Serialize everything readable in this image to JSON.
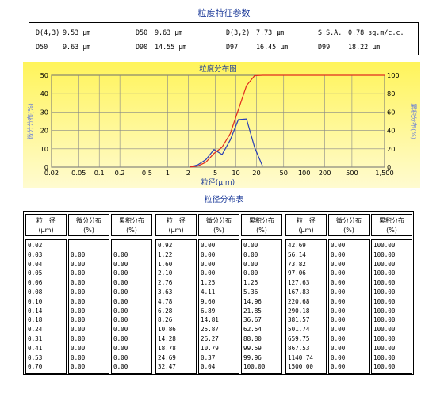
{
  "title": "粒度特征参数",
  "params": [
    [
      {
        "label": "D(4,3)",
        "value": "9.53 μm"
      },
      {
        "label": "D50",
        "value": "9.63 μm"
      },
      {
        "label": "D(3,2)",
        "value": "7.73 μm"
      },
      {
        "label": "S.S.A.",
        "value": "0.78 sq.m/c.c."
      }
    ],
    [
      {
        "label": "D50",
        "value": "9.63 μm"
      },
      {
        "label": "D90",
        "value": "14.55 μm"
      },
      {
        "label": "D97",
        "value": "16.45 μm"
      },
      {
        "label": "D99",
        "value": "18.22 μm"
      }
    ]
  ],
  "chart_data": {
    "type": "line",
    "title": "粒度分布图",
    "xlabel": "粒径(μ m)",
    "ylabel_left": "微分分布(%)",
    "ylabel_right": "累积分布(%)",
    "x_scale": "log",
    "xlim": [
      0.02,
      1500
    ],
    "ylim_left": [
      0,
      50
    ],
    "ylim_right": [
      0,
      100
    ],
    "x_ticks": [
      "0.02",
      "0.05",
      "0.1",
      "0.2",
      "0.5",
      "1",
      "2",
      "5",
      "10",
      "20",
      "50",
      "100",
      "200",
      "500",
      "1,500"
    ],
    "x_tick_values": [
      0.02,
      0.05,
      0.1,
      0.2,
      0.5,
      1,
      2,
      5,
      10,
      20,
      50,
      100,
      200,
      500,
      1500
    ],
    "y_ticks_left": [
      "0",
      "10",
      "20",
      "30",
      "40",
      "50"
    ],
    "y_ticks_right": [
      "0",
      "20",
      "40",
      "60",
      "80",
      "100"
    ],
    "grid": true,
    "series": [
      {
        "axis": "left",
        "color": "#2a3fb5",
        "x": [
          2.1,
          2.76,
          3.63,
          4.78,
          6.28,
          8.26,
          10.86,
          14.28,
          18.78,
          24.69
        ],
        "y": [
          0,
          1.25,
          4.11,
          9.6,
          6.89,
          14.81,
          25.87,
          26.27,
          10.79,
          0.37
        ]
      },
      {
        "axis": "right",
        "color": "#e02a1e",
        "x": [
          2.1,
          2.76,
          3.63,
          4.78,
          6.28,
          8.26,
          10.86,
          14.28,
          18.78,
          24.69,
          32.47
        ],
        "y": [
          0,
          1.25,
          5.36,
          14.96,
          21.85,
          36.67,
          62.54,
          88.8,
          99.59,
          99.96,
          100
        ]
      }
    ]
  },
  "table": {
    "title": "粒径分布表",
    "headers": [
      [
        "粒　径",
        "(μm)"
      ],
      [
        "微分分布",
        "(%)"
      ],
      [
        "累积分布",
        "(%)"
      ],
      [
        "粒　径",
        "(μm)"
      ],
      [
        "微分分布",
        "(%)"
      ],
      [
        "累积分布",
        "(%)"
      ],
      [
        "粒　径",
        "(μm)"
      ],
      [
        "微分分布",
        "(%)"
      ],
      [
        "累积分布",
        "(%)"
      ]
    ],
    "columns": [
      [
        "0.02",
        "0.03",
        "0.04",
        "0.05",
        "0.06",
        "0.08",
        "0.10",
        "0.14",
        "0.18",
        "0.24",
        "0.31",
        "0.41",
        "0.53",
        "0.70"
      ],
      [
        "",
        "0.00",
        "0.00",
        "0.00",
        "0.00",
        "0.00",
        "0.00",
        "0.00",
        "0.00",
        "0.00",
        "0.00",
        "0.00",
        "0.00",
        "0.00"
      ],
      [
        "",
        "0.00",
        "0.00",
        "0.00",
        "0.00",
        "0.00",
        "0.00",
        "0.00",
        "0.00",
        "0.00",
        "0.00",
        "0.00",
        "0.00",
        "0.00"
      ],
      [
        "0.92",
        "1.22",
        "1.60",
        "2.10",
        "2.76",
        "3.63",
        "4.78",
        "6.28",
        "8.26",
        "10.86",
        "14.28",
        "18.78",
        "24.69",
        "32.47"
      ],
      [
        "0.00",
        "0.00",
        "0.00",
        "0.00",
        "1.25",
        "4.11",
        "9.60",
        "6.89",
        "14.81",
        "25.87",
        "26.27",
        "10.79",
        "0.37",
        "0.04"
      ],
      [
        "0.00",
        "0.00",
        "0.00",
        "0.00",
        "1.25",
        "5.36",
        "14.96",
        "21.85",
        "36.67",
        "62.54",
        "88.80",
        "99.59",
        "99.96",
        "100.00"
      ],
      [
        "42.69",
        "56.14",
        "73.82",
        "97.06",
        "127.63",
        "167.83",
        "220.68",
        "290.18",
        "381.57",
        "501.74",
        "659.75",
        "867.53",
        "1140.74",
        "1500.00"
      ],
      [
        "0.00",
        "0.00",
        "0.00",
        "0.00",
        "0.00",
        "0.00",
        "0.00",
        "0.00",
        "0.00",
        "0.00",
        "0.00",
        "0.00",
        "0.00",
        "0.00"
      ],
      [
        "100.00",
        "100.00",
        "100.00",
        "100.00",
        "100.00",
        "100.00",
        "100.00",
        "100.00",
        "100.00",
        "100.00",
        "100.00",
        "100.00",
        "100.00",
        "100.00"
      ]
    ]
  }
}
